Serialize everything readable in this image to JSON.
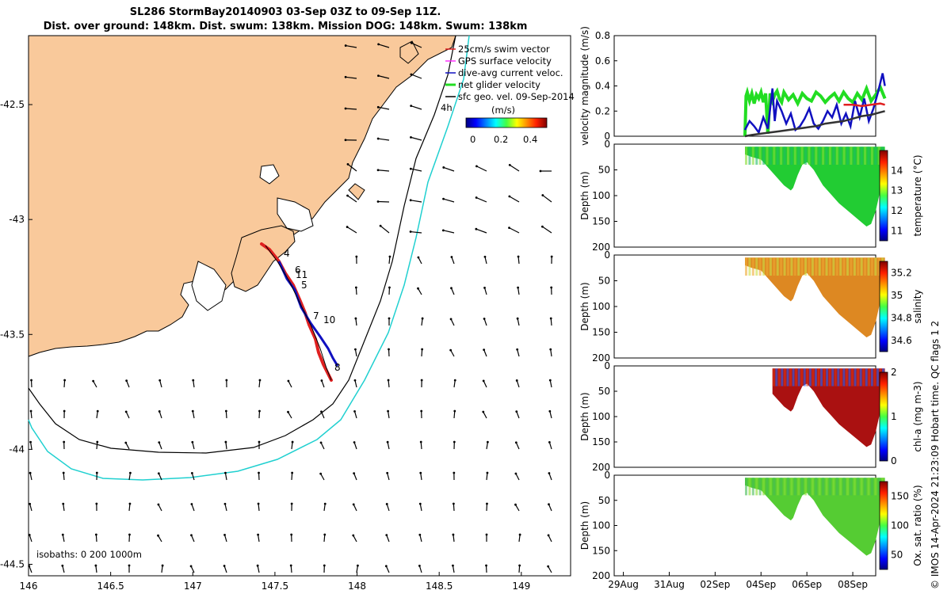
{
  "header": {
    "title_line1": "SL286 StormBay20140903 03-Sep 03Z to 09-Sep 11Z.",
    "title_line2": "Dist. over ground: 148km. Dist. swum: 138km. Mission DOG: 148km. Swum: 138km"
  },
  "credit": "© IMOS 14-Apr-2024 21:23:09 Hobart time. QC flags 1 2",
  "chart_data": [
    {
      "id": "map",
      "type": "scatter",
      "title": "",
      "xlim": [
        146.0,
        149.3
      ],
      "ylim": [
        -44.55,
        -42.2
      ],
      "xticks": [
        146,
        146.5,
        147,
        147.5,
        148,
        148.5,
        149
      ],
      "xtick_labels": [
        "146",
        "146.5",
        "147",
        "147.5",
        "148",
        "148.5",
        "149"
      ],
      "yticks": [
        -42.5,
        -43,
        -43.5,
        -44,
        -44.5
      ],
      "ytick_labels": [
        "-42.5",
        "-43",
        "-43.5",
        "-44",
        "-44.5"
      ],
      "land_color": "#F9C99B",
      "legend": {
        "placement": "top-right",
        "entries": [
          {
            "label": "25cm/s swim vector",
            "color": "#e02020"
          },
          {
            "label": "GPS surface velocity",
            "color": "#ff33ff"
          },
          {
            "label": "dive-avg current veloc.",
            "color": "#1010c0"
          },
          {
            "label": "net glider velocity",
            "color": "#22dd22"
          },
          {
            "label": "sfc geo. vel. 09-Sep-2014",
            "color": "#000000"
          }
        ],
        "extra_label": "4h"
      },
      "colorbar": {
        "label": "(m/s)",
        "ticks": [
          0,
          0.2,
          0.4
        ],
        "tick_labels": [
          "0",
          "0.2",
          "0.4"
        ],
        "range": [
          0,
          0.5
        ]
      },
      "isobaths": {
        "label": "isobaths: 0   200  1000m",
        "levels": [
          0,
          200,
          1000
        ]
      },
      "dive_labels": [
        "4",
        "6",
        "11",
        "5",
        "7",
        "10",
        "8"
      ]
    },
    {
      "id": "velocity",
      "type": "line",
      "ylabel": "velocity magnitude (m/s)",
      "ylim": [
        0,
        0.8
      ],
      "yticks": [
        0,
        0.2,
        0.4,
        0.6,
        0.8
      ],
      "ytick_labels": [
        "0",
        "0.2",
        "0.4",
        "0.6",
        "0.8"
      ],
      "xlim": [
        28.6,
        10.0
      ],
      "series": [
        {
          "color": "#22dd22",
          "x": [
            3.3,
            3.35,
            3.4,
            3.5,
            3.6,
            3.7,
            3.8,
            3.9,
            4.0,
            4.1,
            4.2,
            4.3,
            4.4,
            4.5,
            4.6,
            4.7,
            4.8,
            4.9,
            5.0,
            5.2,
            5.4,
            5.6,
            5.8,
            6.0,
            6.2,
            6.4,
            6.6,
            6.8,
            7.0,
            7.2,
            7.4,
            7.6,
            7.8,
            8.0,
            8.2,
            8.4,
            8.6,
            8.8,
            9.0,
            9.2,
            9.4
          ],
          "values": [
            0.0,
            0.32,
            0.35,
            0.28,
            0.34,
            0.26,
            0.33,
            0.3,
            0.35,
            0.27,
            0.34,
            0.02,
            0.34,
            0.28,
            0.33,
            0.36,
            0.3,
            0.27,
            0.35,
            0.29,
            0.33,
            0.26,
            0.34,
            0.3,
            0.28,
            0.35,
            0.32,
            0.27,
            0.31,
            0.34,
            0.28,
            0.35,
            0.3,
            0.27,
            0.34,
            0.29,
            0.38,
            0.28,
            0.33,
            0.39,
            0.3
          ]
        },
        {
          "color": "#1010c0",
          "x": [
            3.3,
            3.5,
            3.7,
            3.9,
            4.1,
            4.3,
            4.5,
            4.6,
            4.7,
            4.9,
            5.1,
            5.3,
            5.5,
            5.7,
            5.9,
            6.1,
            6.3,
            6.5,
            6.7,
            6.9,
            7.1,
            7.3,
            7.5,
            7.7,
            7.9,
            8.1,
            8.3,
            8.5,
            8.7,
            8.9,
            9.1,
            9.3,
            9.4
          ],
          "values": [
            0.05,
            0.12,
            0.08,
            0.03,
            0.15,
            0.06,
            0.38,
            0.12,
            0.28,
            0.2,
            0.1,
            0.18,
            0.05,
            0.08,
            0.14,
            0.22,
            0.1,
            0.06,
            0.12,
            0.2,
            0.15,
            0.25,
            0.1,
            0.18,
            0.08,
            0.28,
            0.15,
            0.3,
            0.12,
            0.22,
            0.35,
            0.5,
            0.4
          ]
        },
        {
          "color": "#e02020",
          "x": [
            7.6,
            8.0,
            8.4,
            8.8,
            9.2,
            9.4
          ],
          "values": [
            0.25,
            0.25,
            0.24,
            0.25,
            0.26,
            0.25
          ]
        },
        {
          "color": "#333333",
          "x": [
            3.3,
            3.6,
            4.0,
            4.4,
            4.8,
            5.2,
            5.6,
            6.0,
            6.4,
            6.8,
            7.2,
            7.6,
            8.0,
            8.4,
            8.8,
            9.2,
            9.4
          ],
          "values": [
            0.0,
            0.01,
            0.02,
            0.03,
            0.04,
            0.05,
            0.06,
            0.07,
            0.08,
            0.1,
            0.11,
            0.12,
            0.14,
            0.16,
            0.17,
            0.19,
            0.2
          ]
        }
      ]
    },
    {
      "id": "temperature",
      "type": "heatmap",
      "ylabel": "Depth (m)",
      "colorbar_label": "temperature (°C)",
      "colorbar_ticks": [
        11,
        12,
        13,
        14
      ],
      "colorbar_range": [
        10.5,
        15
      ],
      "ylim": [
        200,
        0
      ],
      "yticks": [
        0,
        50,
        100,
        150,
        200
      ],
      "ytick_labels": [
        "0",
        "50",
        "100",
        "150",
        "200"
      ],
      "x_start": 3.3,
      "x_end": 9.4,
      "bottom_depth": {
        "x": [
          3.3,
          3.6,
          4.0,
          4.5,
          5.0,
          5.3,
          5.4,
          5.6,
          5.8,
          6.0,
          6.3,
          6.7,
          7.0,
          7.4,
          7.8,
          8.2,
          8.6,
          8.8,
          9.0,
          9.2,
          9.4
        ],
        "depth": [
          20,
          25,
          30,
          55,
          80,
          90,
          85,
          60,
          40,
          35,
          50,
          80,
          95,
          115,
          130,
          145,
          160,
          155,
          130,
          90,
          70
        ]
      },
      "palette_value": 13.3
    },
    {
      "id": "salinity",
      "type": "heatmap",
      "ylabel": "Depth (m)",
      "colorbar_label": "salinity",
      "colorbar_ticks": [
        34.6,
        34.8,
        35,
        35.2
      ],
      "colorbar_range": [
        34.5,
        35.3
      ],
      "ylim": [
        200,
        0
      ],
      "yticks": [
        0,
        50,
        100,
        150,
        200
      ],
      "ytick_labels": [
        "0",
        "50",
        "100",
        "150",
        "200"
      ],
      "x_start": 3.3,
      "x_end": 9.4,
      "palette_value": 35.1
    },
    {
      "id": "chla",
      "type": "heatmap",
      "ylabel": "Depth (m)",
      "colorbar_label": "chl-a (mg m-3)",
      "colorbar_ticks": [
        0,
        1,
        2
      ],
      "colorbar_range": [
        0,
        2
      ],
      "ylim": [
        200,
        0
      ],
      "yticks": [
        0,
        50,
        100,
        150,
        200
      ],
      "ytick_labels": [
        "0",
        "50",
        "100",
        "150",
        "200"
      ],
      "x_start": 4.5,
      "x_end": 9.4,
      "palette_value": 1.8
    },
    {
      "id": "oxygen",
      "type": "heatmap",
      "ylabel": "Depth (m)",
      "colorbar_label": "Ox. sat. ratio (%)",
      "colorbar_ticks": [
        50,
        100,
        150
      ],
      "colorbar_range": [
        25,
        175
      ],
      "ylim": [
        200,
        0
      ],
      "yticks": [
        0,
        50,
        100,
        150,
        200
      ],
      "ytick_labels": [
        "0",
        "50",
        "100",
        "150",
        "200"
      ],
      "x_start": 3.3,
      "x_end": 9.4,
      "palette_value": 105,
      "x_ticks": [
        "29Aug",
        "31Aug",
        "02Sep",
        "04Sep",
        "06Sep",
        "08Sep"
      ]
    }
  ]
}
